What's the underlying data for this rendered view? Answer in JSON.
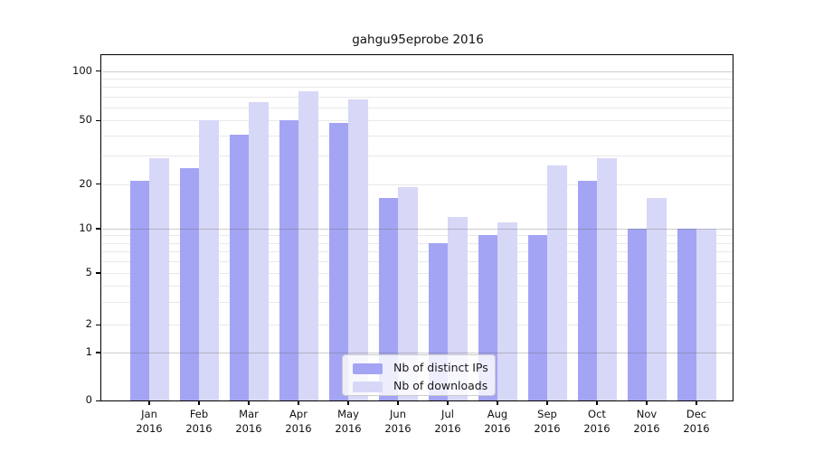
{
  "chart_data": {
    "type": "bar",
    "title": "gahgu95eprobe 2016",
    "year_label": "2016",
    "categories": [
      "Jan",
      "Feb",
      "Mar",
      "Apr",
      "May",
      "Jun",
      "Jul",
      "Aug",
      "Sep",
      "Oct",
      "Nov",
      "Dec"
    ],
    "series": [
      {
        "name": "Nb of distinct IPs",
        "color": "#a4a4f4",
        "values": [
          21,
          25,
          41,
          50,
          48,
          16,
          8,
          9,
          9,
          21,
          10,
          10
        ]
      },
      {
        "name": "Nb of downloads",
        "color": "#d7d7f7",
        "values": [
          29,
          50,
          65,
          75,
          67,
          19,
          12,
          11,
          26,
          29,
          16,
          10
        ]
      }
    ],
    "xlabel": "",
    "ylabel": "",
    "y_scale": "symlog",
    "y_tick_labels": [
      "0",
      "1",
      "2",
      "5",
      "10",
      "20",
      "50",
      "100"
    ],
    "y_tick_values": [
      0,
      1,
      2,
      5,
      10,
      20,
      50,
      100
    ],
    "y_minor_gridline_values": [
      3,
      4,
      6,
      7,
      8,
      9,
      30,
      40,
      60,
      70,
      80,
      90
    ],
    "y_major_gridline_values": [
      1,
      10,
      100
    ],
    "ylim": [
      0,
      120
    ],
    "grid": true,
    "legend_position": "lower center (inside plot)",
    "colors": {
      "bar_ips": "#a4a4f4",
      "bar_downloads": "#d7d7f7",
      "minor_grid": "#e9e9e9",
      "major_grid": "#b4b4b4",
      "axis": "#000000",
      "background": "#ffffff"
    }
  }
}
